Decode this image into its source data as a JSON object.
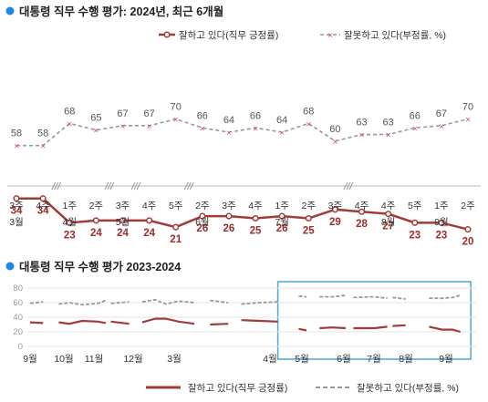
{
  "colors": {
    "approve": "#a33a3a",
    "disapprove": "#999999",
    "disapprove_marker": "#d9534f",
    "bullet": "#1e88e5",
    "highlight_box": "#4ea6d6"
  },
  "chart_data": [
    {
      "type": "line",
      "title": "대통령 직무 수행 평가: 2024년, 최근 6개월",
      "x": [
        "3주",
        "4주",
        "1주",
        "2주",
        "3주",
        "4주",
        "5주",
        "2주",
        "3주",
        "4주",
        "1주",
        "2주",
        "3주",
        "4주",
        "4주",
        "5주",
        "1주",
        "2주"
      ],
      "x_month_labels": [
        {
          "index": 0,
          "label": "3월"
        },
        {
          "index": 2,
          "label": "4월"
        },
        {
          "index": 4,
          "label": "5월"
        },
        {
          "index": 7,
          "label": "6월"
        },
        {
          "index": 10,
          "label": "7월"
        },
        {
          "index": 14,
          "label": "8월"
        },
        {
          "index": 16,
          "label": "9월"
        }
      ],
      "axis_breaks_after_index": [
        1,
        3,
        4,
        6,
        12
      ],
      "series": [
        {
          "name": "잘하고 있다(직무 긍정률)",
          "values": [
            34,
            34,
            23,
            24,
            24,
            24,
            21,
            26,
            26,
            25,
            26,
            25,
            29,
            28,
            27,
            23,
            23,
            20
          ]
        },
        {
          "name": "잘못하고 있다(부정률, %)",
          "values": [
            58,
            58,
            68,
            65,
            67,
            67,
            70,
            66,
            64,
            66,
            64,
            68,
            60,
            63,
            63,
            66,
            67,
            70
          ]
        }
      ],
      "ylim": [
        0,
        100
      ],
      "legend": "top-right",
      "grid": false
    },
    {
      "type": "line",
      "title": "대통령 직무 수행 평가 2023-2024",
      "x_month_labels": [
        "9월",
        "10월",
        "11월",
        "12월",
        "3월",
        "4월",
        "5월",
        "6월",
        "7월",
        "8월",
        "9월"
      ],
      "y_ticks": [
        0,
        20,
        40,
        60,
        80
      ],
      "ylim": [
        0,
        85
      ],
      "highlight_range": [
        "3월",
        "9월"
      ],
      "segments": [
        {
          "x": [
            0,
            0.5
          ],
          "approve": [
            33,
            32
          ],
          "disapprove": [
            59,
            61
          ]
        },
        {
          "x": [
            1.1,
            1.5,
            2.0,
            2.6,
            2.9
          ],
          "approve": [
            33,
            31,
            35,
            34,
            32
          ],
          "disapprove": [
            58,
            60,
            57,
            59,
            63
          ]
        },
        {
          "x": [
            3.1,
            3.8
          ],
          "approve": [
            34,
            31
          ],
          "disapprove": [
            59,
            61
          ]
        },
        {
          "x": [
            4.3,
            4.8,
            5.2,
            5.7,
            6.3
          ],
          "approve": [
            33,
            38,
            38,
            34,
            31
          ],
          "disapprove": [
            61,
            64,
            58,
            62,
            60
          ]
        },
        {
          "x": [
            6.9,
            7.6
          ],
          "approve": [
            30,
            31
          ],
          "disapprove": [
            63,
            60
          ]
        },
        {
          "x": [
            8.1,
            8.8,
            9.5
          ],
          "approve": [
            36,
            35,
            34
          ],
          "disapprove": [
            58,
            60,
            61
          ]
        },
        {
          "x": [
            10.3,
            10.6
          ],
          "approve": [
            24,
            22
          ],
          "disapprove": [
            69,
            68
          ]
        },
        {
          "x": [
            11.1,
            11.6,
            12.1
          ],
          "approve": [
            25,
            26,
            25
          ],
          "disapprove": [
            68,
            68,
            70
          ]
        },
        {
          "x": [
            12.4,
            13.2,
            13.7
          ],
          "approve": [
            25,
            25,
            27
          ],
          "disapprove": [
            67,
            68,
            66
          ]
        },
        {
          "x": [
            13.9,
            14.4
          ],
          "approve": [
            28,
            29
          ],
          "disapprove": [
            67,
            65
          ]
        },
        {
          "x": [
            15.3,
            15.8,
            16.2,
            16.5
          ],
          "approve": [
            27,
            23,
            23,
            20
          ],
          "disapprove": [
            66,
            66,
            67,
            70
          ]
        }
      ],
      "legend": "bottom",
      "series_names": [
        "잘하고 있다(직무 긍정률)",
        "잘못하고 있다(부정률, %)"
      ]
    }
  ]
}
